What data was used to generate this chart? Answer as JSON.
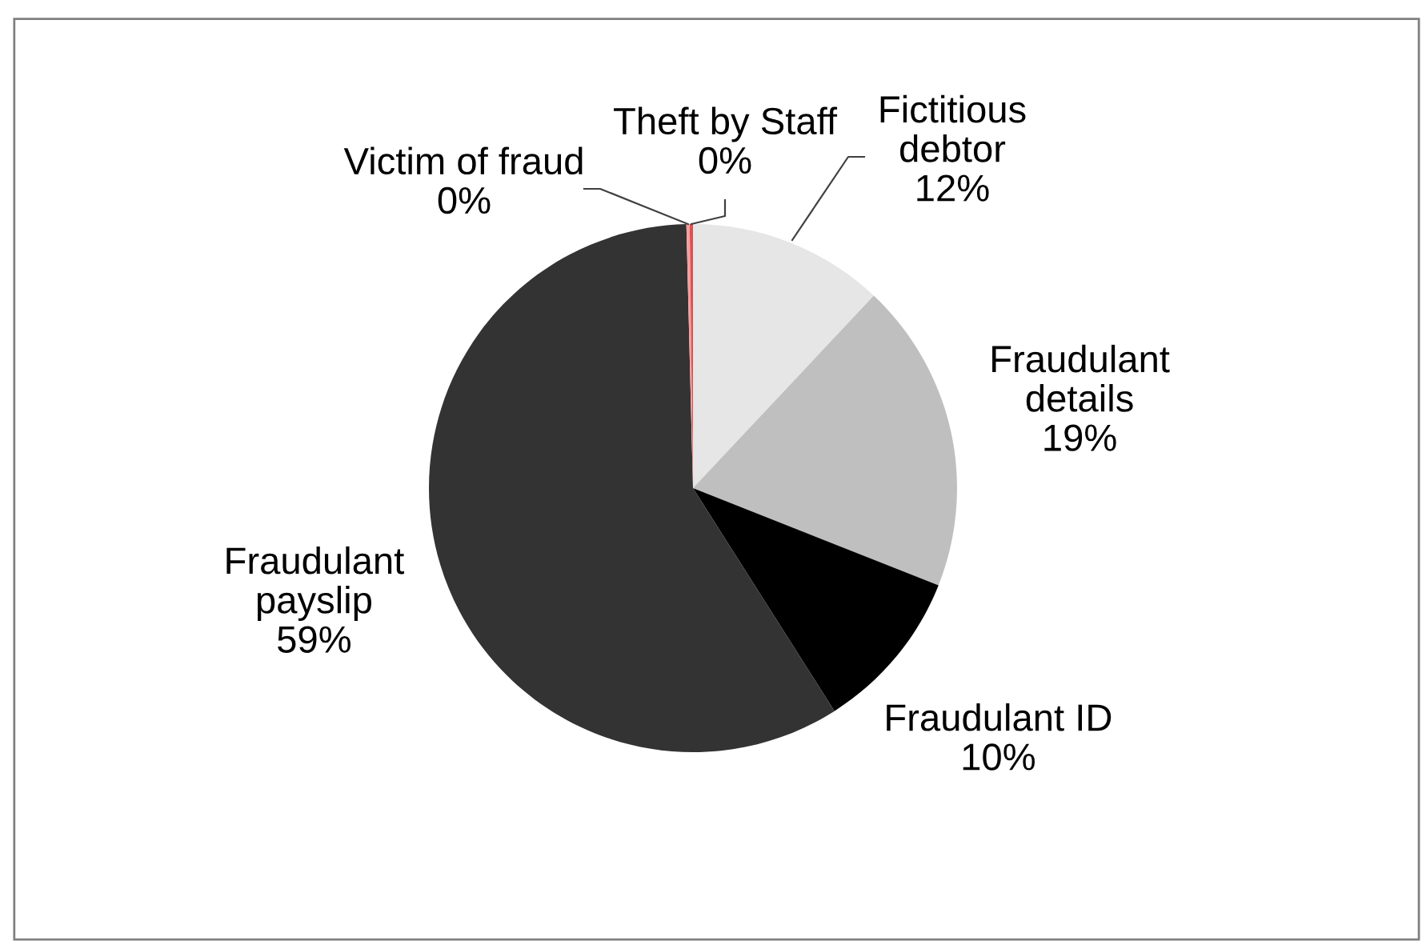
{
  "chart_data": {
    "type": "pie",
    "categories": [
      "Fictitious debtor",
      "Fraudulant details",
      "Fraudulant ID",
      "Fraudulant payslip",
      "Victim of fraud",
      "Theft by Staff"
    ],
    "values": [
      12,
      19,
      10,
      58.6,
      0.2,
      0.2
    ],
    "value_labels": [
      "12%",
      "19%",
      "10%",
      "59%",
      "0%",
      "0%"
    ],
    "colors": [
      "#e6e6e6",
      "#bfbfbf",
      "#000000",
      "#333333",
      "#f4a0a0",
      "#e05050"
    ],
    "legend": false
  }
}
